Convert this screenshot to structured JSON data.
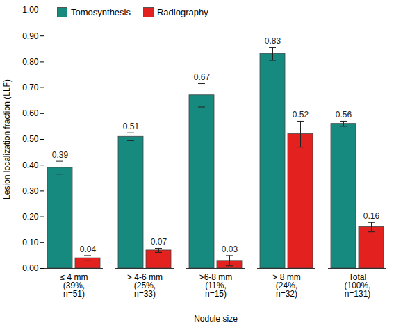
{
  "chart_data": {
    "type": "bar",
    "categories": [
      "≤ 4 mm\n(39%,\nn=51)",
      "> 4-6 mm\n(25%,\nn=33)",
      ">6-8 mm\n(11%,\nn=15)",
      "> 8 mm\n(24%,\nn=32)",
      "Total\n(100%,\nn=131)"
    ],
    "series": [
      {
        "name": "Tomosynthesis",
        "color": "#178a80",
        "values": [
          0.39,
          0.51,
          0.67,
          0.83,
          0.56
        ],
        "errors": [
          0.025,
          0.015,
          0.045,
          0.025,
          0.01
        ]
      },
      {
        "name": "Radiography",
        "color": "#e3211f",
        "values": [
          0.04,
          0.07,
          0.03,
          0.52,
          0.16
        ],
        "errors": [
          0.01,
          0.008,
          0.02,
          0.05,
          0.018
        ]
      }
    ],
    "x_label": "Nodule size",
    "y_label": "Lesion localization fraction (LLF)",
    "ylim": [
      0,
      1
    ],
    "yticks": [
      {
        "value": 0,
        "label": "0.00"
      },
      {
        "value": 0.1,
        "label": "0.10"
      },
      {
        "value": 0.2,
        "label": "0.20"
      },
      {
        "value": 0.3,
        "label": "0.30"
      },
      {
        "value": 0.4,
        "label": "0.40"
      },
      {
        "value": 0.5,
        "label": "0.50"
      },
      {
        "value": 0.6,
        "label": "0.60"
      },
      {
        "value": 0.7,
        "label": "0.70"
      },
      {
        "value": 0.8,
        "label": "0.80"
      },
      {
        "value": 0.9,
        "label": "0.90"
      },
      {
        "value": 1,
        "label": "1.00"
      }
    ],
    "grid": false,
    "legend": "top-left",
    "data_labels": true
  }
}
